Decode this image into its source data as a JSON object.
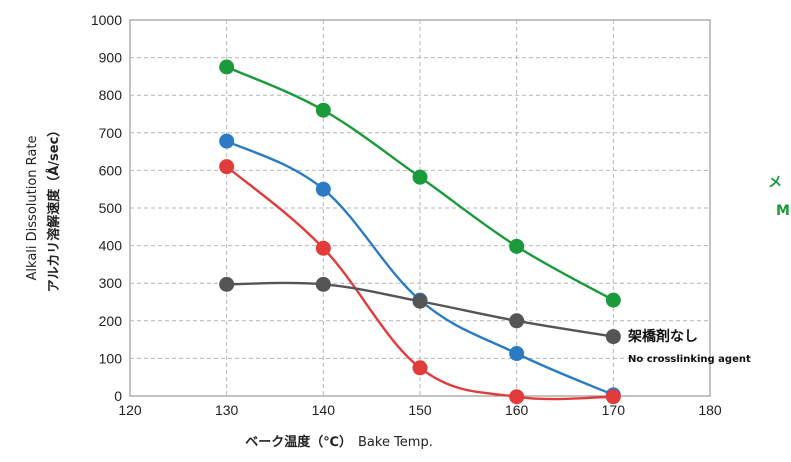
{
  "chart_data": {
    "type": "line",
    "xlabel_jp": "ベーク温度（℃）",
    "xlabel_en": "Bake Temp.",
    "ylabel_en": "Alkali Dissolution Rate",
    "ylabel_jp": "アルカリ溶解速度（Å/sec）",
    "xlim": [
      120,
      180
    ],
    "ylim": [
      0,
      1000
    ],
    "x_ticks": [
      120,
      130,
      140,
      150,
      160,
      170,
      180
    ],
    "y_ticks": [
      0,
      100,
      200,
      300,
      400,
      500,
      600,
      700,
      800,
      900,
      1000
    ],
    "grid": true,
    "x": [
      130,
      140,
      150,
      160,
      170
    ],
    "series": [
      {
        "color": "#1a9a3a",
        "values": [
          875,
          760,
          582,
          398,
          255
        ]
      },
      {
        "color": "#2a7bc4",
        "values": [
          678,
          550,
          255,
          113,
          3
        ]
      },
      {
        "color": "#e23b3b",
        "values": [
          610,
          393,
          75,
          -2,
          -2
        ]
      },
      {
        "color": "#555555",
        "values": [
          297,
          297,
          252,
          200,
          158
        ]
      }
    ],
    "annotations": [
      {
        "text_jp": "架橋剤なし",
        "text_en": "No crosslinking agent"
      }
    ],
    "side_labels": [
      "メ",
      "M"
    ]
  }
}
